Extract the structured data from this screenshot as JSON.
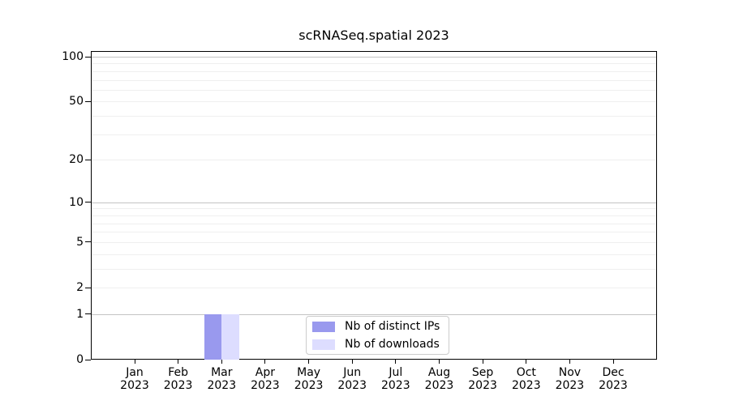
{
  "chart_data": {
    "type": "bar",
    "title": "scRNASeq.spatial 2023",
    "categories": [
      {
        "month": "Jan",
        "year": "2023"
      },
      {
        "month": "Feb",
        "year": "2023"
      },
      {
        "month": "Mar",
        "year": "2023"
      },
      {
        "month": "Apr",
        "year": "2023"
      },
      {
        "month": "May",
        "year": "2023"
      },
      {
        "month": "Jun",
        "year": "2023"
      },
      {
        "month": "Jul",
        "year": "2023"
      },
      {
        "month": "Aug",
        "year": "2023"
      },
      {
        "month": "Sep",
        "year": "2023"
      },
      {
        "month": "Oct",
        "year": "2023"
      },
      {
        "month": "Nov",
        "year": "2023"
      },
      {
        "month": "Dec",
        "year": "2023"
      }
    ],
    "series": [
      {
        "name": "Nb of distinct IPs",
        "color": "#9999ee",
        "values": [
          0,
          0,
          1,
          0,
          0,
          0,
          0,
          0,
          0,
          0,
          0,
          0
        ]
      },
      {
        "name": "Nb of downloads",
        "color": "#ddddff",
        "values": [
          0,
          0,
          1,
          0,
          0,
          0,
          0,
          0,
          0,
          0,
          0,
          0
        ]
      }
    ],
    "y_ticks": [
      0,
      1,
      2,
      5,
      10,
      20,
      50,
      100
    ],
    "y_minor_gridlines": [
      2,
      3,
      4,
      5,
      6,
      7,
      8,
      9,
      20,
      30,
      40,
      50,
      60,
      70,
      80,
      90
    ],
    "y_major_gridlines": [
      1,
      10,
      100
    ],
    "y_scale": "log1p",
    "ylim": [
      0,
      100
    ],
    "grid": "horizontal",
    "legend": {
      "position": "bottom-center",
      "entries": [
        "Nb of distinct IPs",
        "Nb of downloads"
      ]
    }
  }
}
